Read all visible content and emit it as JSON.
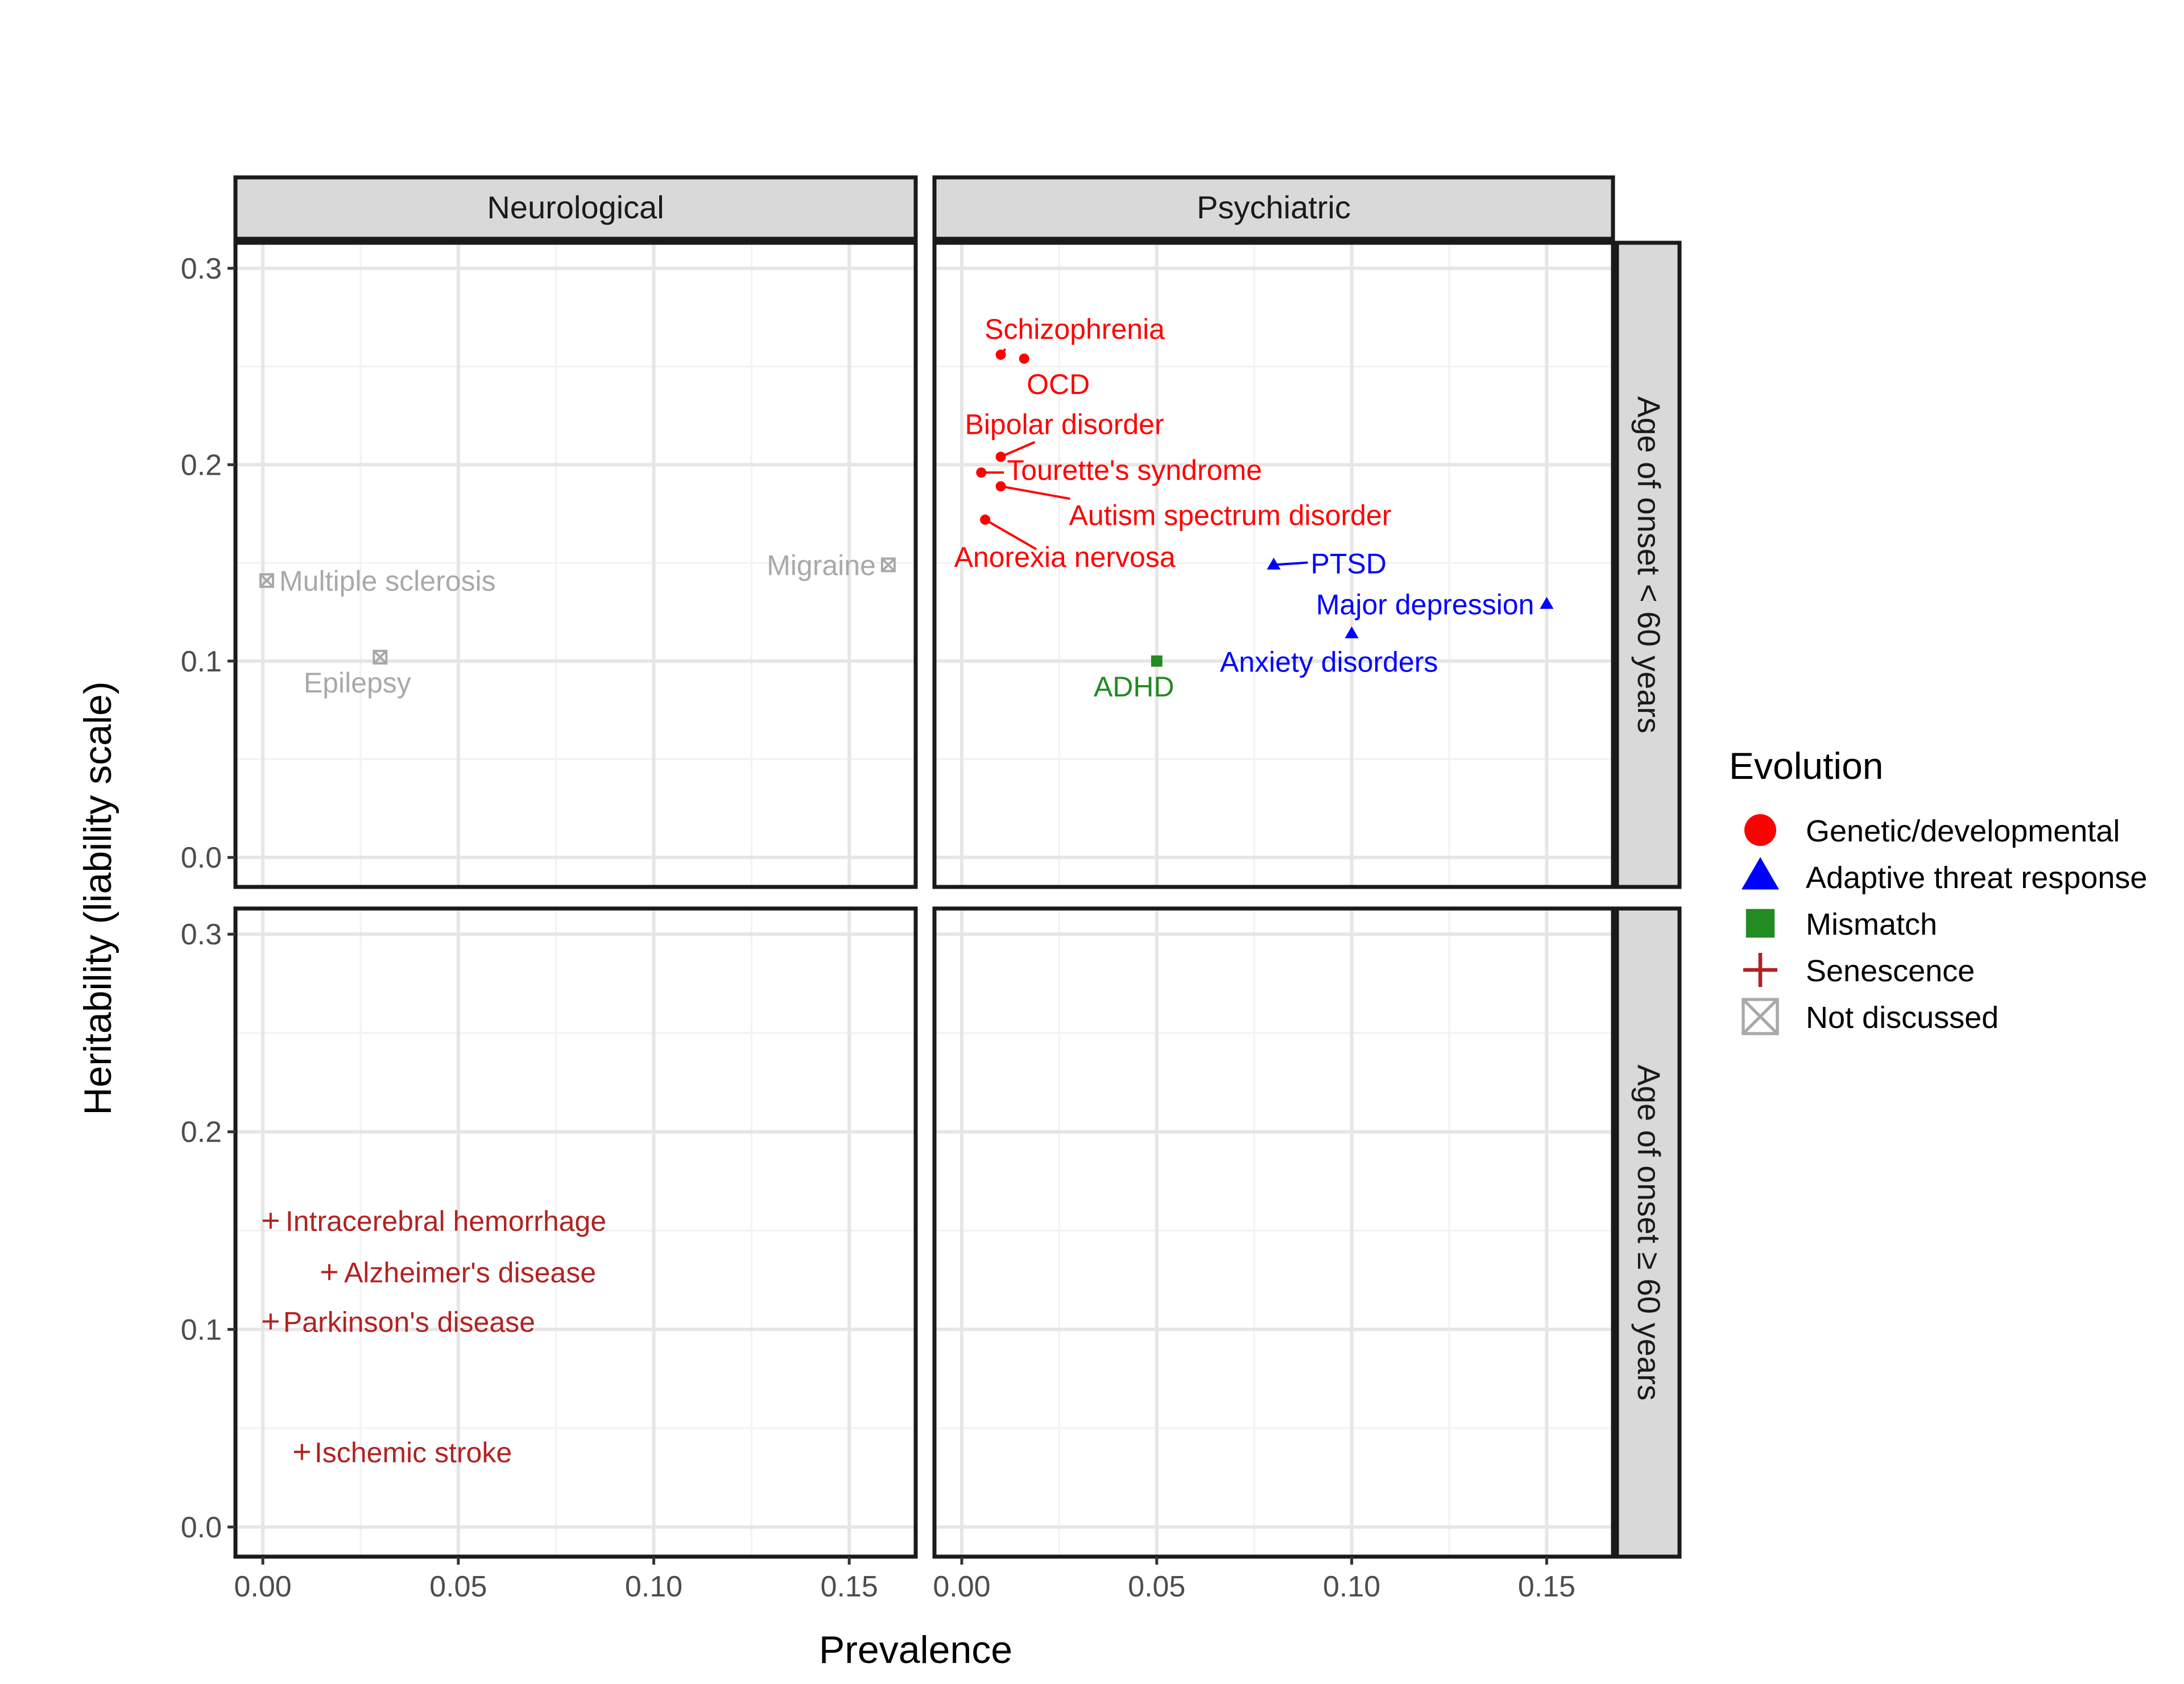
{
  "chart_data": {
    "type": "scatter",
    "xlabel": "Prevalence",
    "ylabel": "Heritability (liability scale)",
    "xlim": [
      -0.007,
      0.167
    ],
    "ylim": [
      -0.015,
      0.313
    ],
    "x_ticks": [
      "0.00",
      "0.05",
      "0.10",
      "0.15"
    ],
    "x_tick_values": [
      0,
      0.05,
      0.1,
      0.15
    ],
    "y_ticks": [
      "0.0",
      "0.1",
      "0.2",
      "0.3"
    ],
    "y_tick_values": [
      0,
      0.1,
      0.2,
      0.3
    ],
    "grid": true,
    "facet_columns": [
      "Neurological",
      "Psychiatric"
    ],
    "facet_rows": [
      "Age of onset < 60 years",
      "Age of onset ≥ 60 years"
    ],
    "legend": {
      "title": "Evolution",
      "position": "right",
      "entries": [
        {
          "key": "genetic",
          "label": "Genetic/developmental",
          "shape": "circle",
          "color": "#ff0000"
        },
        {
          "key": "adaptive",
          "label": "Adaptive threat response",
          "shape": "triangle",
          "color": "#0000ff"
        },
        {
          "key": "mismatch",
          "label": "Mismatch",
          "shape": "square",
          "color": "#228b22"
        },
        {
          "key": "senescence",
          "label": "Senescence",
          "shape": "plus",
          "color": "#b22222"
        },
        {
          "key": "notdiscussed",
          "label": "Not discussed",
          "shape": "boxx",
          "color": "#a9a9a9"
        }
      ]
    },
    "points": [
      {
        "label": "Multiple sclerosis",
        "x": 0.001,
        "y": 0.141,
        "category": "notdiscussed",
        "col": 0,
        "row": 0
      },
      {
        "label": "Epilepsy",
        "x": 0.03,
        "y": 0.102,
        "category": "notdiscussed",
        "col": 0,
        "row": 0
      },
      {
        "label": "Migraine",
        "x": 0.16,
        "y": 0.149,
        "category": "notdiscussed",
        "col": 0,
        "row": 0
      },
      {
        "label": "Schizophrenia",
        "x": 0.01,
        "y": 0.256,
        "category": "genetic",
        "col": 1,
        "row": 0
      },
      {
        "label": "OCD",
        "x": 0.016,
        "y": 0.254,
        "category": "genetic",
        "col": 1,
        "row": 0
      },
      {
        "label": "Bipolar disorder",
        "x": 0.01,
        "y": 0.204,
        "category": "genetic",
        "col": 1,
        "row": 0
      },
      {
        "label": "Tourette's syndrome",
        "x": 0.005,
        "y": 0.196,
        "category": "genetic",
        "col": 1,
        "row": 0
      },
      {
        "label": "Autism spectrum disorder",
        "x": 0.01,
        "y": 0.189,
        "category": "genetic",
        "col": 1,
        "row": 0
      },
      {
        "label": "Anorexia nervosa",
        "x": 0.006,
        "y": 0.172,
        "category": "genetic",
        "col": 1,
        "row": 0
      },
      {
        "label": "PTSD",
        "x": 0.08,
        "y": 0.149,
        "category": "adaptive",
        "col": 1,
        "row": 0
      },
      {
        "label": "Major depression",
        "x": 0.15,
        "y": 0.129,
        "category": "adaptive",
        "col": 1,
        "row": 0
      },
      {
        "label": "Anxiety disorders",
        "x": 0.1,
        "y": 0.114,
        "category": "adaptive",
        "col": 1,
        "row": 0
      },
      {
        "label": "ADHD",
        "x": 0.05,
        "y": 0.1,
        "category": "mismatch",
        "col": 1,
        "row": 0
      },
      {
        "label": "Intracerebral hemorrhage",
        "x": 0.002,
        "y": 0.155,
        "category": "senescence",
        "col": 0,
        "row": 1
      },
      {
        "label": "Alzheimer's disease",
        "x": 0.017,
        "y": 0.129,
        "category": "senescence",
        "col": 0,
        "row": 1
      },
      {
        "label": "Parkinson's disease",
        "x": 0.002,
        "y": 0.104,
        "category": "senescence",
        "col": 0,
        "row": 1
      },
      {
        "label": "Ischemic stroke",
        "x": 0.01,
        "y": 0.038,
        "category": "senescence",
        "col": 0,
        "row": 1
      }
    ]
  }
}
